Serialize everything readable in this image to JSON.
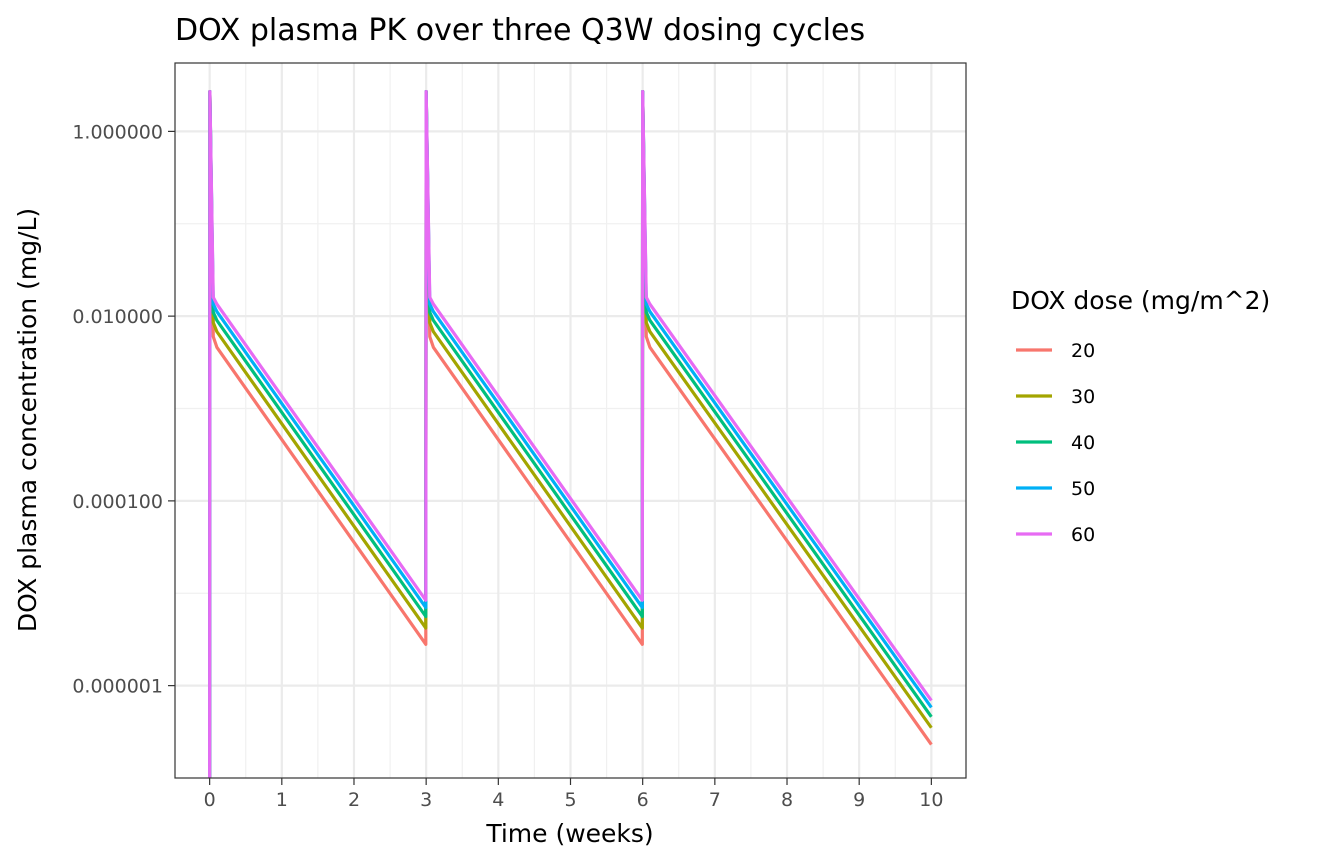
{
  "chart_data": {
    "type": "line",
    "title": "DOX plasma PK over three Q3W dosing cycles",
    "xlabel": "Time (weeks)",
    "ylabel": "DOX plasma concentration (mg/L)",
    "x_scale": "linear",
    "y_scale": "log10",
    "xlim": [
      -0.48,
      10.48
    ],
    "ylim": [
      1e-07,
      5.5
    ],
    "x_ticks": [
      0,
      1,
      2,
      3,
      4,
      5,
      6,
      7,
      8,
      9,
      10
    ],
    "x_tick_labels": [
      "0",
      "1",
      "2",
      "3",
      "4",
      "5",
      "6",
      "7",
      "8",
      "9",
      "10"
    ],
    "y_ticks": [
      1e-06,
      0.0001,
      0.01,
      1
    ],
    "y_tick_labels": [
      "0.000001",
      "0.000100",
      "0.010000",
      "1.000000"
    ],
    "dose_times_weeks": [
      0,
      3,
      6
    ],
    "grid": true,
    "legend": {
      "title": "DOX dose (mg/m^2)",
      "position": "right"
    },
    "series": [
      {
        "name": "20",
        "color": "#F8766D",
        "points": [
          [
            0,
            1e-07
          ],
          [
            0.003,
            2.7
          ],
          [
            0.05,
            0.006
          ],
          [
            0.1,
            0.0046
          ],
          [
            2.995,
            2.8e-06
          ],
          [
            3.0,
            2.7
          ],
          [
            3.05,
            0.006
          ],
          [
            3.1,
            0.0046
          ],
          [
            5.995,
            2.8e-06
          ],
          [
            6.0,
            2.7
          ],
          [
            6.05,
            0.006
          ],
          [
            6.1,
            0.0046
          ],
          [
            10.0,
            2.3e-07
          ]
        ]
      },
      {
        "name": "30",
        "color": "#A3A500",
        "points": [
          [
            0,
            1e-07
          ],
          [
            0.003,
            2.7
          ],
          [
            0.05,
            0.0085
          ],
          [
            0.1,
            0.0068
          ],
          [
            2.995,
            4.2e-06
          ],
          [
            3.0,
            2.7
          ],
          [
            3.05,
            0.0085
          ],
          [
            3.1,
            0.0068
          ],
          [
            5.995,
            4.2e-06
          ],
          [
            6.0,
            2.7
          ],
          [
            6.05,
            0.0085
          ],
          [
            6.1,
            0.0068
          ],
          [
            10.0,
            3.5e-07
          ]
        ]
      },
      {
        "name": "40",
        "color": "#00BF7D",
        "points": [
          [
            0,
            1e-07
          ],
          [
            0.003,
            2.7
          ],
          [
            0.05,
            0.011
          ],
          [
            0.1,
            0.009
          ],
          [
            2.995,
            5.6e-06
          ],
          [
            3.0,
            2.7
          ],
          [
            3.05,
            0.011
          ],
          [
            3.1,
            0.009
          ],
          [
            5.995,
            5.6e-06
          ],
          [
            6.0,
            2.7
          ],
          [
            6.05,
            0.011
          ],
          [
            6.1,
            0.009
          ],
          [
            10.0,
            4.6e-07
          ]
        ]
      },
      {
        "name": "50",
        "color": "#00B0F6",
        "points": [
          [
            0,
            1e-07
          ],
          [
            0.003,
            2.7
          ],
          [
            0.05,
            0.0135
          ],
          [
            0.1,
            0.0112
          ],
          [
            2.995,
            7e-06
          ],
          [
            3.0,
            2.7
          ],
          [
            3.05,
            0.0135
          ],
          [
            3.1,
            0.0112
          ],
          [
            5.995,
            7e-06
          ],
          [
            6.0,
            2.7
          ],
          [
            6.05,
            0.0135
          ],
          [
            6.1,
            0.0112
          ],
          [
            10.0,
            5.8e-07
          ]
        ]
      },
      {
        "name": "60",
        "color": "#E76BF3",
        "points": [
          [
            0,
            1e-07
          ],
          [
            0.003,
            2.7
          ],
          [
            0.05,
            0.016
          ],
          [
            0.1,
            0.0135
          ],
          [
            2.995,
            8.4e-06
          ],
          [
            3.0,
            2.7
          ],
          [
            3.05,
            0.016
          ],
          [
            3.1,
            0.0135
          ],
          [
            5.995,
            8.4e-06
          ],
          [
            6.0,
            2.7
          ],
          [
            6.05,
            0.016
          ],
          [
            6.1,
            0.0135
          ],
          [
            10.0,
            6.9e-07
          ]
        ]
      }
    ]
  }
}
